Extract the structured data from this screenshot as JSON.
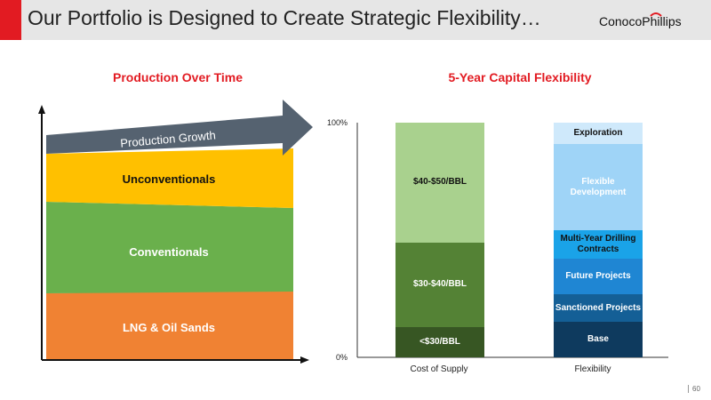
{
  "slide": {
    "title": "Our Portfolio is Designed to Create Strategic Flexibility…",
    "logo_text": "ConocoPhillips",
    "page_number": "60",
    "accent_color": "#e21b22"
  },
  "left_panel": {
    "heading": "Production Over Time",
    "arrow_label": "Production Growth",
    "bands": [
      {
        "label": "Unconventionals",
        "color": "#ffc000",
        "text_color": "#111111"
      },
      {
        "label": "Conventionals",
        "color": "#6ab04c",
        "text_color": "#ffffff"
      },
      {
        "label": "LNG & Oil Sands",
        "color": "#f08233",
        "text_color": "#ffffff"
      }
    ]
  },
  "right_panel": {
    "heading": "5-Year Capital Flexibility",
    "y_top": "100%",
    "y_bottom": "0%",
    "bars": [
      {
        "label": "Cost of Supply",
        "segments": [
          {
            "label": "<$30/BBL",
            "share": 13,
            "color": "#375623",
            "text_color": "#ffffff"
          },
          {
            "label": "$30-$40/BBL",
            "share": 36,
            "color": "#548235",
            "text_color": "#ffffff"
          },
          {
            "label": "$40-$50/BBL",
            "share": 51,
            "color": "#a9d18e",
            "text_color": "#111111"
          }
        ]
      },
      {
        "label": "Flexibility",
        "segments": [
          {
            "label": "Base",
            "share": 15,
            "color": "#0e3a5e",
            "text_color": "#ffffff"
          },
          {
            "label": "Sanctioned Projects",
            "share": 12,
            "color": "#145f96",
            "text_color": "#ffffff"
          },
          {
            "label": "Future Projects",
            "share": 15,
            "color": "#1f86d3",
            "text_color": "#ffffff"
          },
          {
            "label": "Multi-Year Drilling Contracts",
            "share": 12,
            "color": "#1aa3e8",
            "text_color": "#111111"
          },
          {
            "label": "Flexible Development",
            "share": 37,
            "color": "#9fd4f7",
            "text_color": "#ffffff"
          },
          {
            "label": "Exploration",
            "share": 9,
            "color": "#cfe9fb",
            "text_color": "#111111"
          }
        ]
      }
    ]
  }
}
